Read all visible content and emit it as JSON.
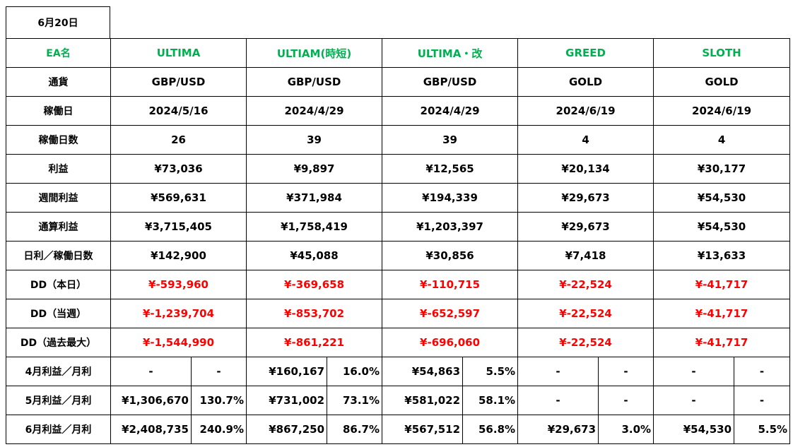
{
  "date": "6月20日",
  "colors": {
    "ea_name": "#00b050",
    "negative": "#ff0000",
    "text": "#000000"
  },
  "header_label": "EA名",
  "eas": [
    {
      "name": "ULTIMA",
      "currency": "GBP/USD",
      "start_date": "2024/5/16",
      "days": "26",
      "profit": "¥73,036",
      "weekly_profit": "¥569,631",
      "total_profit": "¥3,715,405",
      "daily_avg": "¥142,900",
      "dd_today": "¥-593,960",
      "dd_week": "¥-1,239,704",
      "dd_max": "¥-1,544,990",
      "apr_amt": "-",
      "apr_pct": "-",
      "may_amt": "¥1,306,670",
      "may_pct": "130.7%",
      "jun_amt": "¥2,408,735",
      "jun_pct": "240.9%"
    },
    {
      "name": "ULTIAM(時短)",
      "currency": "GBP/USD",
      "start_date": "2024/4/29",
      "days": "39",
      "profit": "¥9,897",
      "weekly_profit": "¥371,984",
      "total_profit": "¥1,758,419",
      "daily_avg": "¥45,088",
      "dd_today": "¥-369,658",
      "dd_week": "¥-853,702",
      "dd_max": "¥-861,221",
      "apr_amt": "¥160,167",
      "apr_pct": "16.0%",
      "may_amt": "¥731,002",
      "may_pct": "73.1%",
      "jun_amt": "¥867,250",
      "jun_pct": "86.7%"
    },
    {
      "name": "ULTIMA・改",
      "currency": "GBP/USD",
      "start_date": "2024/4/29",
      "days": "39",
      "profit": "¥12,565",
      "weekly_profit": "¥194,339",
      "total_profit": "¥1,203,397",
      "daily_avg": "¥30,856",
      "dd_today": "¥-110,715",
      "dd_week": "¥-652,597",
      "dd_max": "¥-696,060",
      "apr_amt": "¥54,863",
      "apr_pct": "5.5%",
      "may_amt": "¥581,022",
      "may_pct": "58.1%",
      "jun_amt": "¥567,512",
      "jun_pct": "56.8%"
    },
    {
      "name": "GREED",
      "currency": "GOLD",
      "start_date": "2024/6/19",
      "days": "4",
      "profit": "¥20,134",
      "weekly_profit": "¥29,673",
      "total_profit": "¥29,673",
      "daily_avg": "¥7,418",
      "dd_today": "¥-22,524",
      "dd_week": "¥-22,524",
      "dd_max": "¥-22,524",
      "apr_amt": "-",
      "apr_pct": "-",
      "may_amt": "-",
      "may_pct": "-",
      "jun_amt": "¥29,673",
      "jun_pct": "3.0%"
    },
    {
      "name": "SLOTH",
      "currency": "GOLD",
      "start_date": "2024/6/19",
      "days": "4",
      "profit": "¥30,177",
      "weekly_profit": "¥54,530",
      "total_profit": "¥54,530",
      "daily_avg": "¥13,633",
      "dd_today": "¥-41,717",
      "dd_week": "¥-41,717",
      "dd_max": "¥-41,717",
      "apr_amt": "-",
      "apr_pct": "-",
      "may_amt": "-",
      "may_pct": "-",
      "jun_amt": "¥54,530",
      "jun_pct": "5.5%"
    }
  ],
  "rows": [
    {
      "key": "currency",
      "label": "通貨"
    },
    {
      "key": "start_date",
      "label": "稼働日"
    },
    {
      "key": "days",
      "label": "稼働日数"
    },
    {
      "key": "profit",
      "label": "利益"
    },
    {
      "key": "weekly_profit",
      "label": "週間利益"
    },
    {
      "key": "total_profit",
      "label": "通算利益"
    },
    {
      "key": "daily_avg",
      "label": "日利／稼働日数"
    },
    {
      "key": "dd_today",
      "label": "DD（本日）",
      "negative": true
    },
    {
      "key": "dd_week",
      "label": "DD（当週）",
      "negative": true
    },
    {
      "key": "dd_max",
      "label": "DD（過去最大）",
      "negative": true
    }
  ],
  "monthly_rows": [
    {
      "amt": "apr_amt",
      "pct": "apr_pct",
      "label": "4月利益／月利"
    },
    {
      "amt": "may_amt",
      "pct": "may_pct",
      "label": "5月利益／月利"
    },
    {
      "amt": "jun_amt",
      "pct": "jun_pct",
      "label": "6月利益／月利"
    }
  ]
}
